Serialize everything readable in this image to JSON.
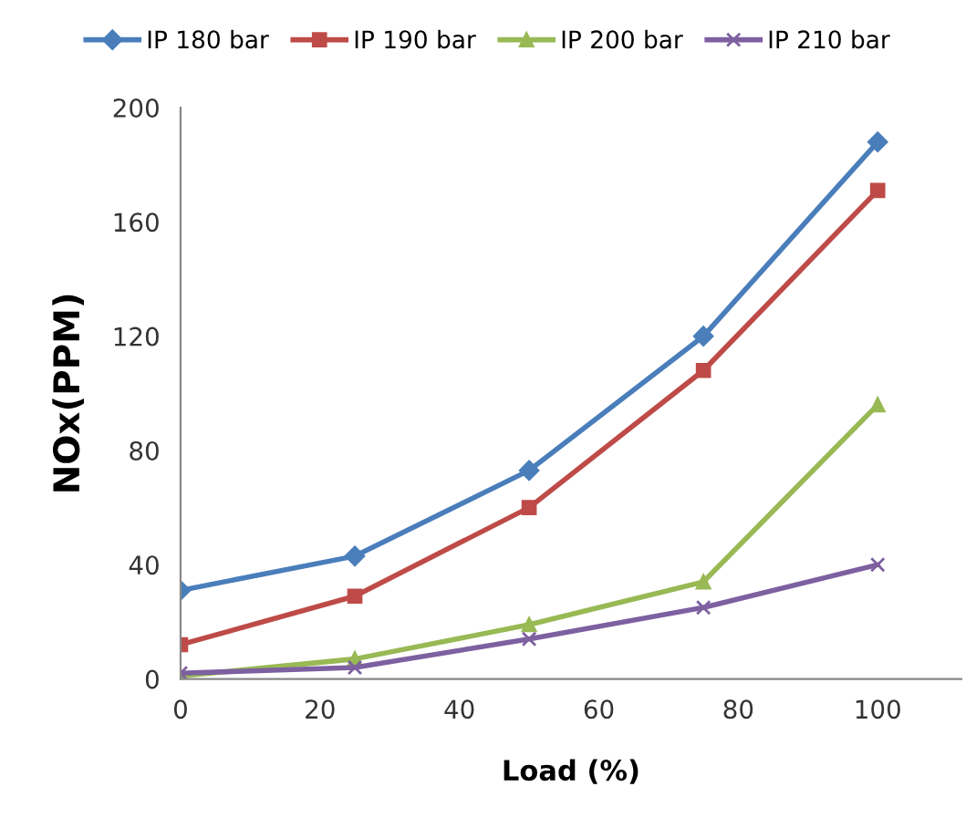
{
  "chart_data": {
    "type": "line",
    "xlabel": "Load (%)",
    "ylabel": "NOx(PPM)",
    "x": [
      0,
      25,
      50,
      75,
      100
    ],
    "series": [
      {
        "name": "IP 180 bar",
        "color": "#4a7ebb",
        "marker": "diamond",
        "values": [
          31,
          43,
          73,
          120,
          188
        ]
      },
      {
        "name": "IP 190 bar",
        "color": "#be4b48",
        "marker": "square",
        "values": [
          12,
          29,
          60,
          108,
          171
        ]
      },
      {
        "name": "IP 200 bar",
        "color": "#98b954",
        "marker": "triangle",
        "values": [
          1,
          7,
          19,
          34,
          96
        ]
      },
      {
        "name": "IP 210 bar",
        "color": "#7d60a0",
        "marker": "cross",
        "values": [
          2,
          4,
          14,
          25,
          40
        ]
      }
    ],
    "xlim": [
      0,
      112
    ],
    "xticks": [
      0,
      20,
      40,
      60,
      80,
      100
    ],
    "ylim": [
      0,
      200
    ],
    "yticks": [
      0,
      40,
      80,
      120,
      160,
      200
    ],
    "grid": false,
    "legend": "top",
    "line_style": "solid"
  }
}
